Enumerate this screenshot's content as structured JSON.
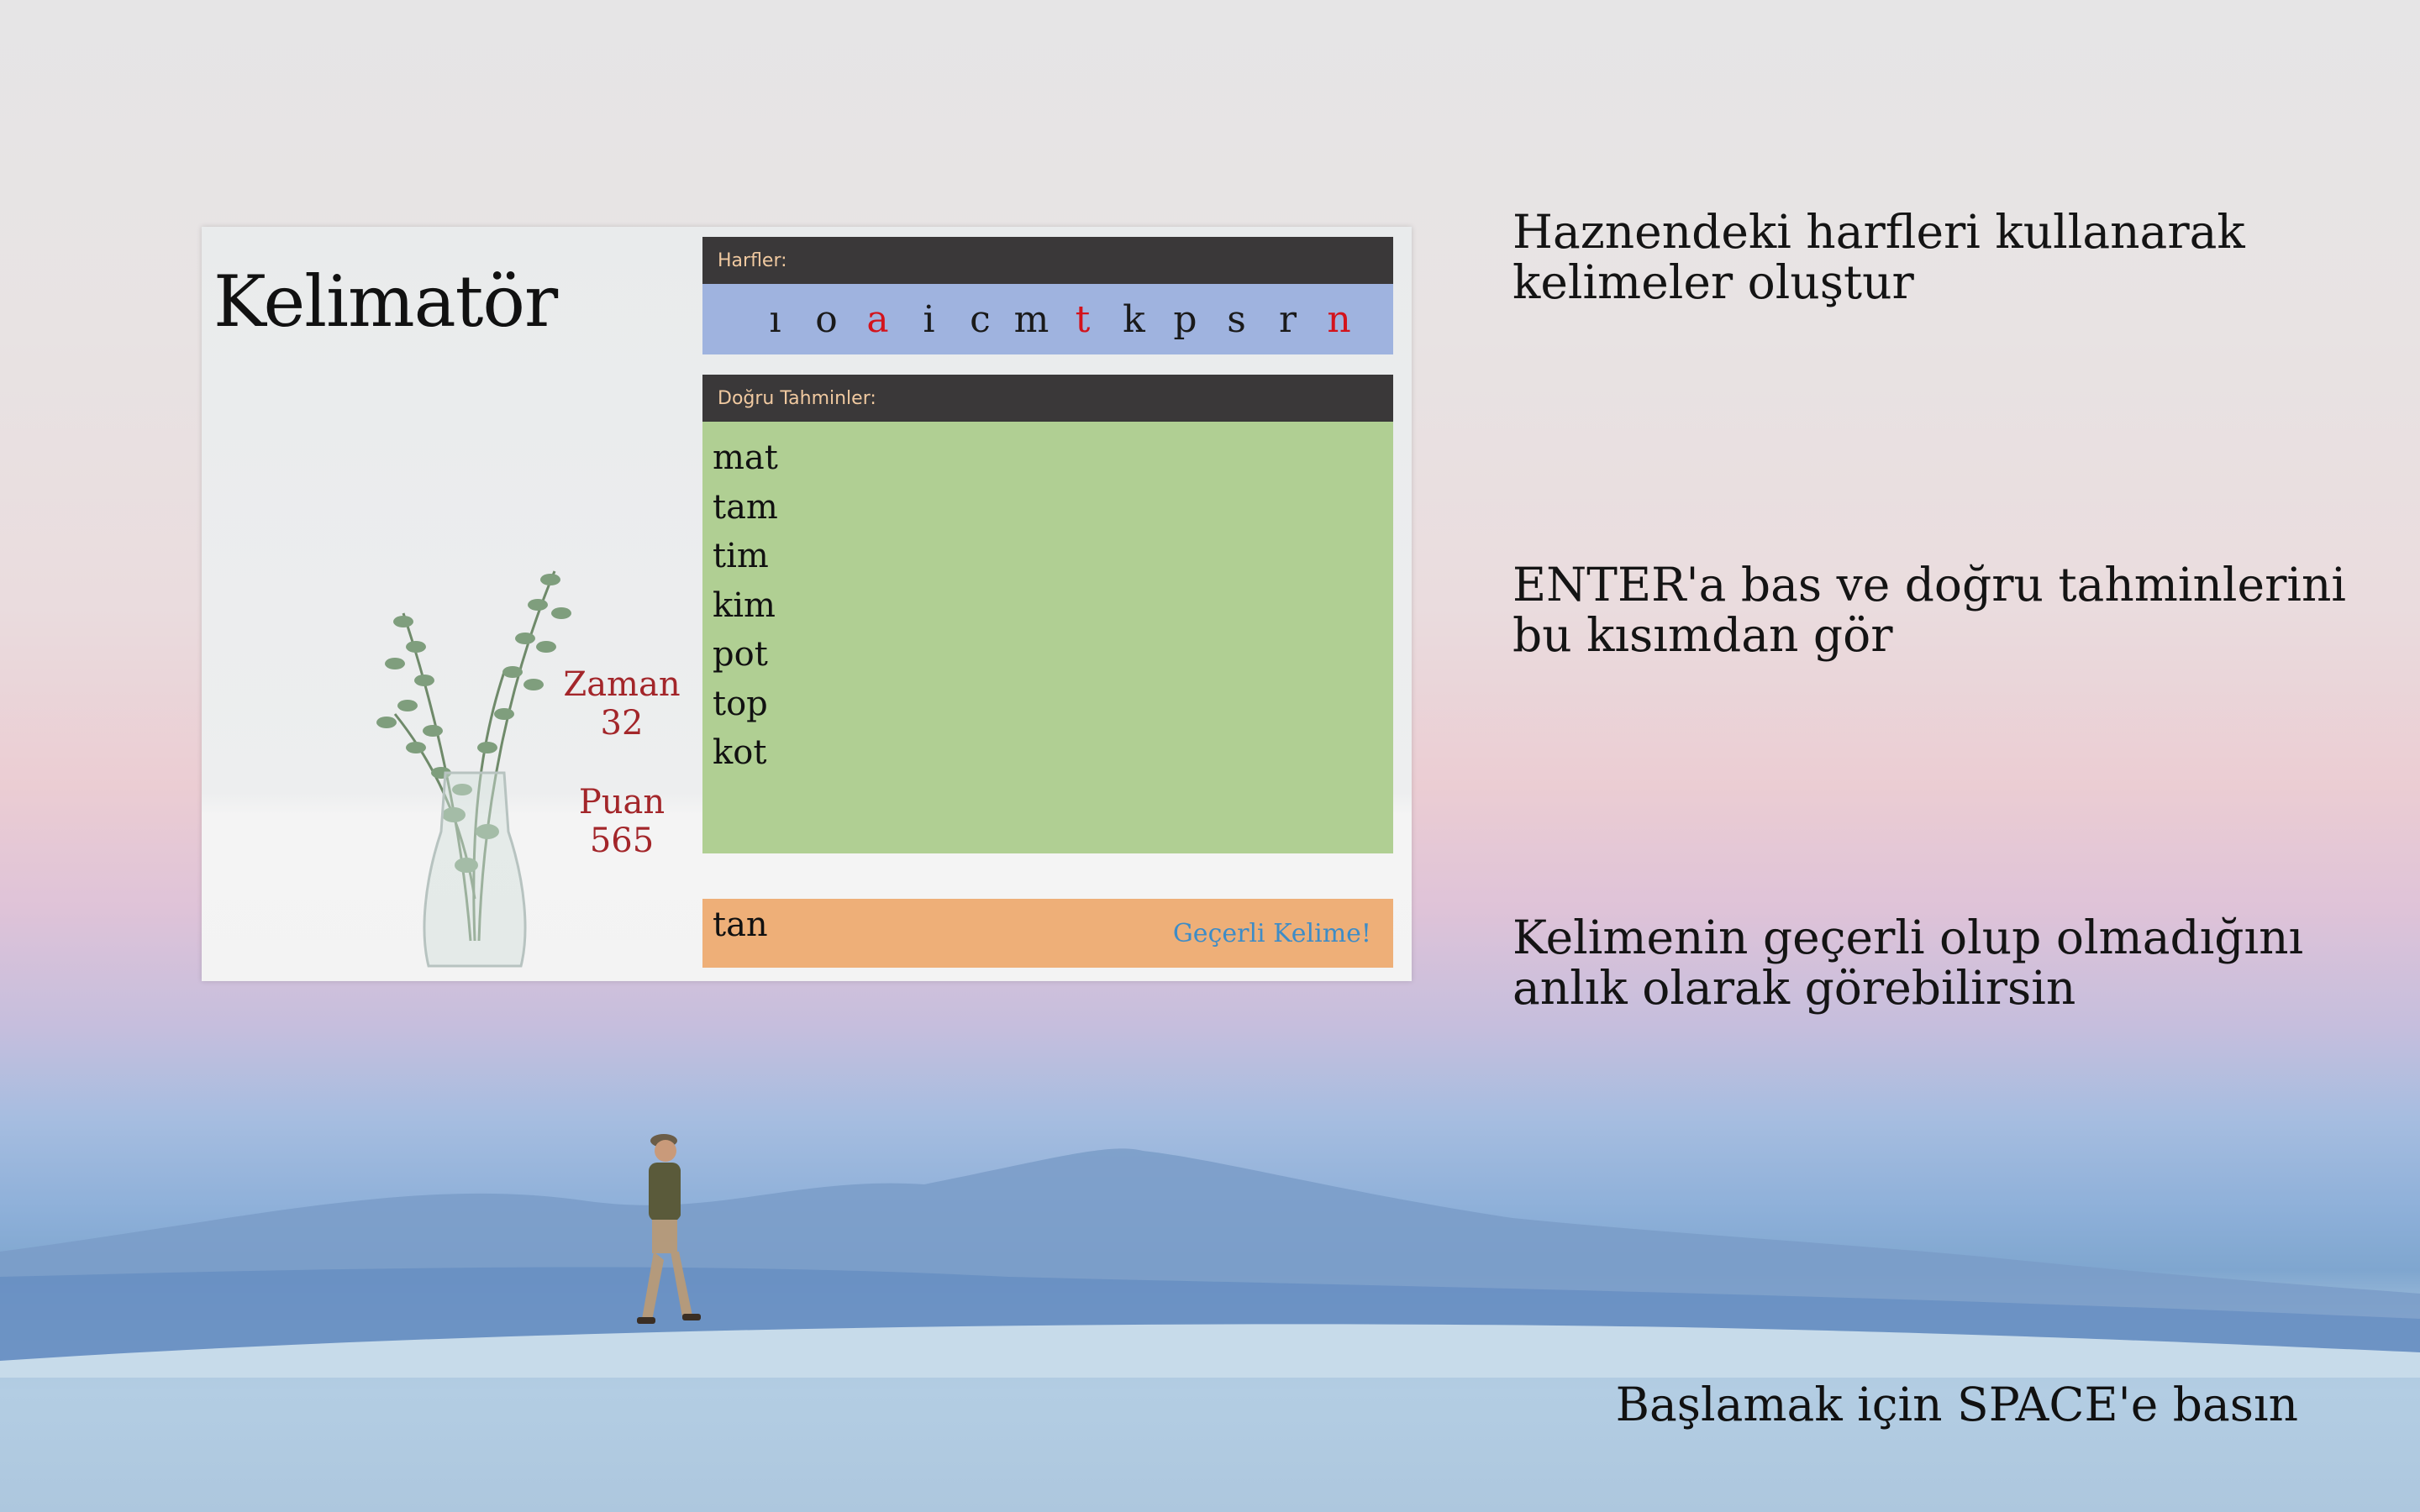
{
  "game": {
    "title": "Kelimatör",
    "letters_label": "Harfler:",
    "letters": [
      {
        "char": "ı",
        "used": false
      },
      {
        "char": "o",
        "used": false
      },
      {
        "char": "a",
        "used": true
      },
      {
        "char": "i",
        "used": false
      },
      {
        "char": "c",
        "used": false
      },
      {
        "char": "m",
        "used": false
      },
      {
        "char": "t",
        "used": true
      },
      {
        "char": "k",
        "used": false
      },
      {
        "char": "p",
        "used": false
      },
      {
        "char": "s",
        "used": false
      },
      {
        "char": "r",
        "used": false
      },
      {
        "char": "n",
        "used": true
      }
    ],
    "guesses_label": "Doğru Tahminler:",
    "guesses": [
      "mat",
      "tam",
      "tim",
      "kim",
      "pot",
      "top",
      "kot"
    ],
    "time_label": "Zaman",
    "time_value": "32",
    "score_label": "Puan",
    "score_value": "565",
    "current_input": "tan",
    "validity_status": "Geçerli Kelime!"
  },
  "hints": {
    "hint1": "Haznendeki harfleri kullanarak kelimeler oluştur",
    "hint2": "ENTER'a bas ve doğru tahminlerini bu kısımdan gör",
    "hint3": "Kelimenin geçerli olup olmadığını anlık olarak görebilirsin"
  },
  "start_prompt": "Başlamak için SPACE'e basın",
  "colors": {
    "used_letter": "#d3131c",
    "status_valid": "#3d8cc7",
    "stat_text": "#a3262a"
  }
}
